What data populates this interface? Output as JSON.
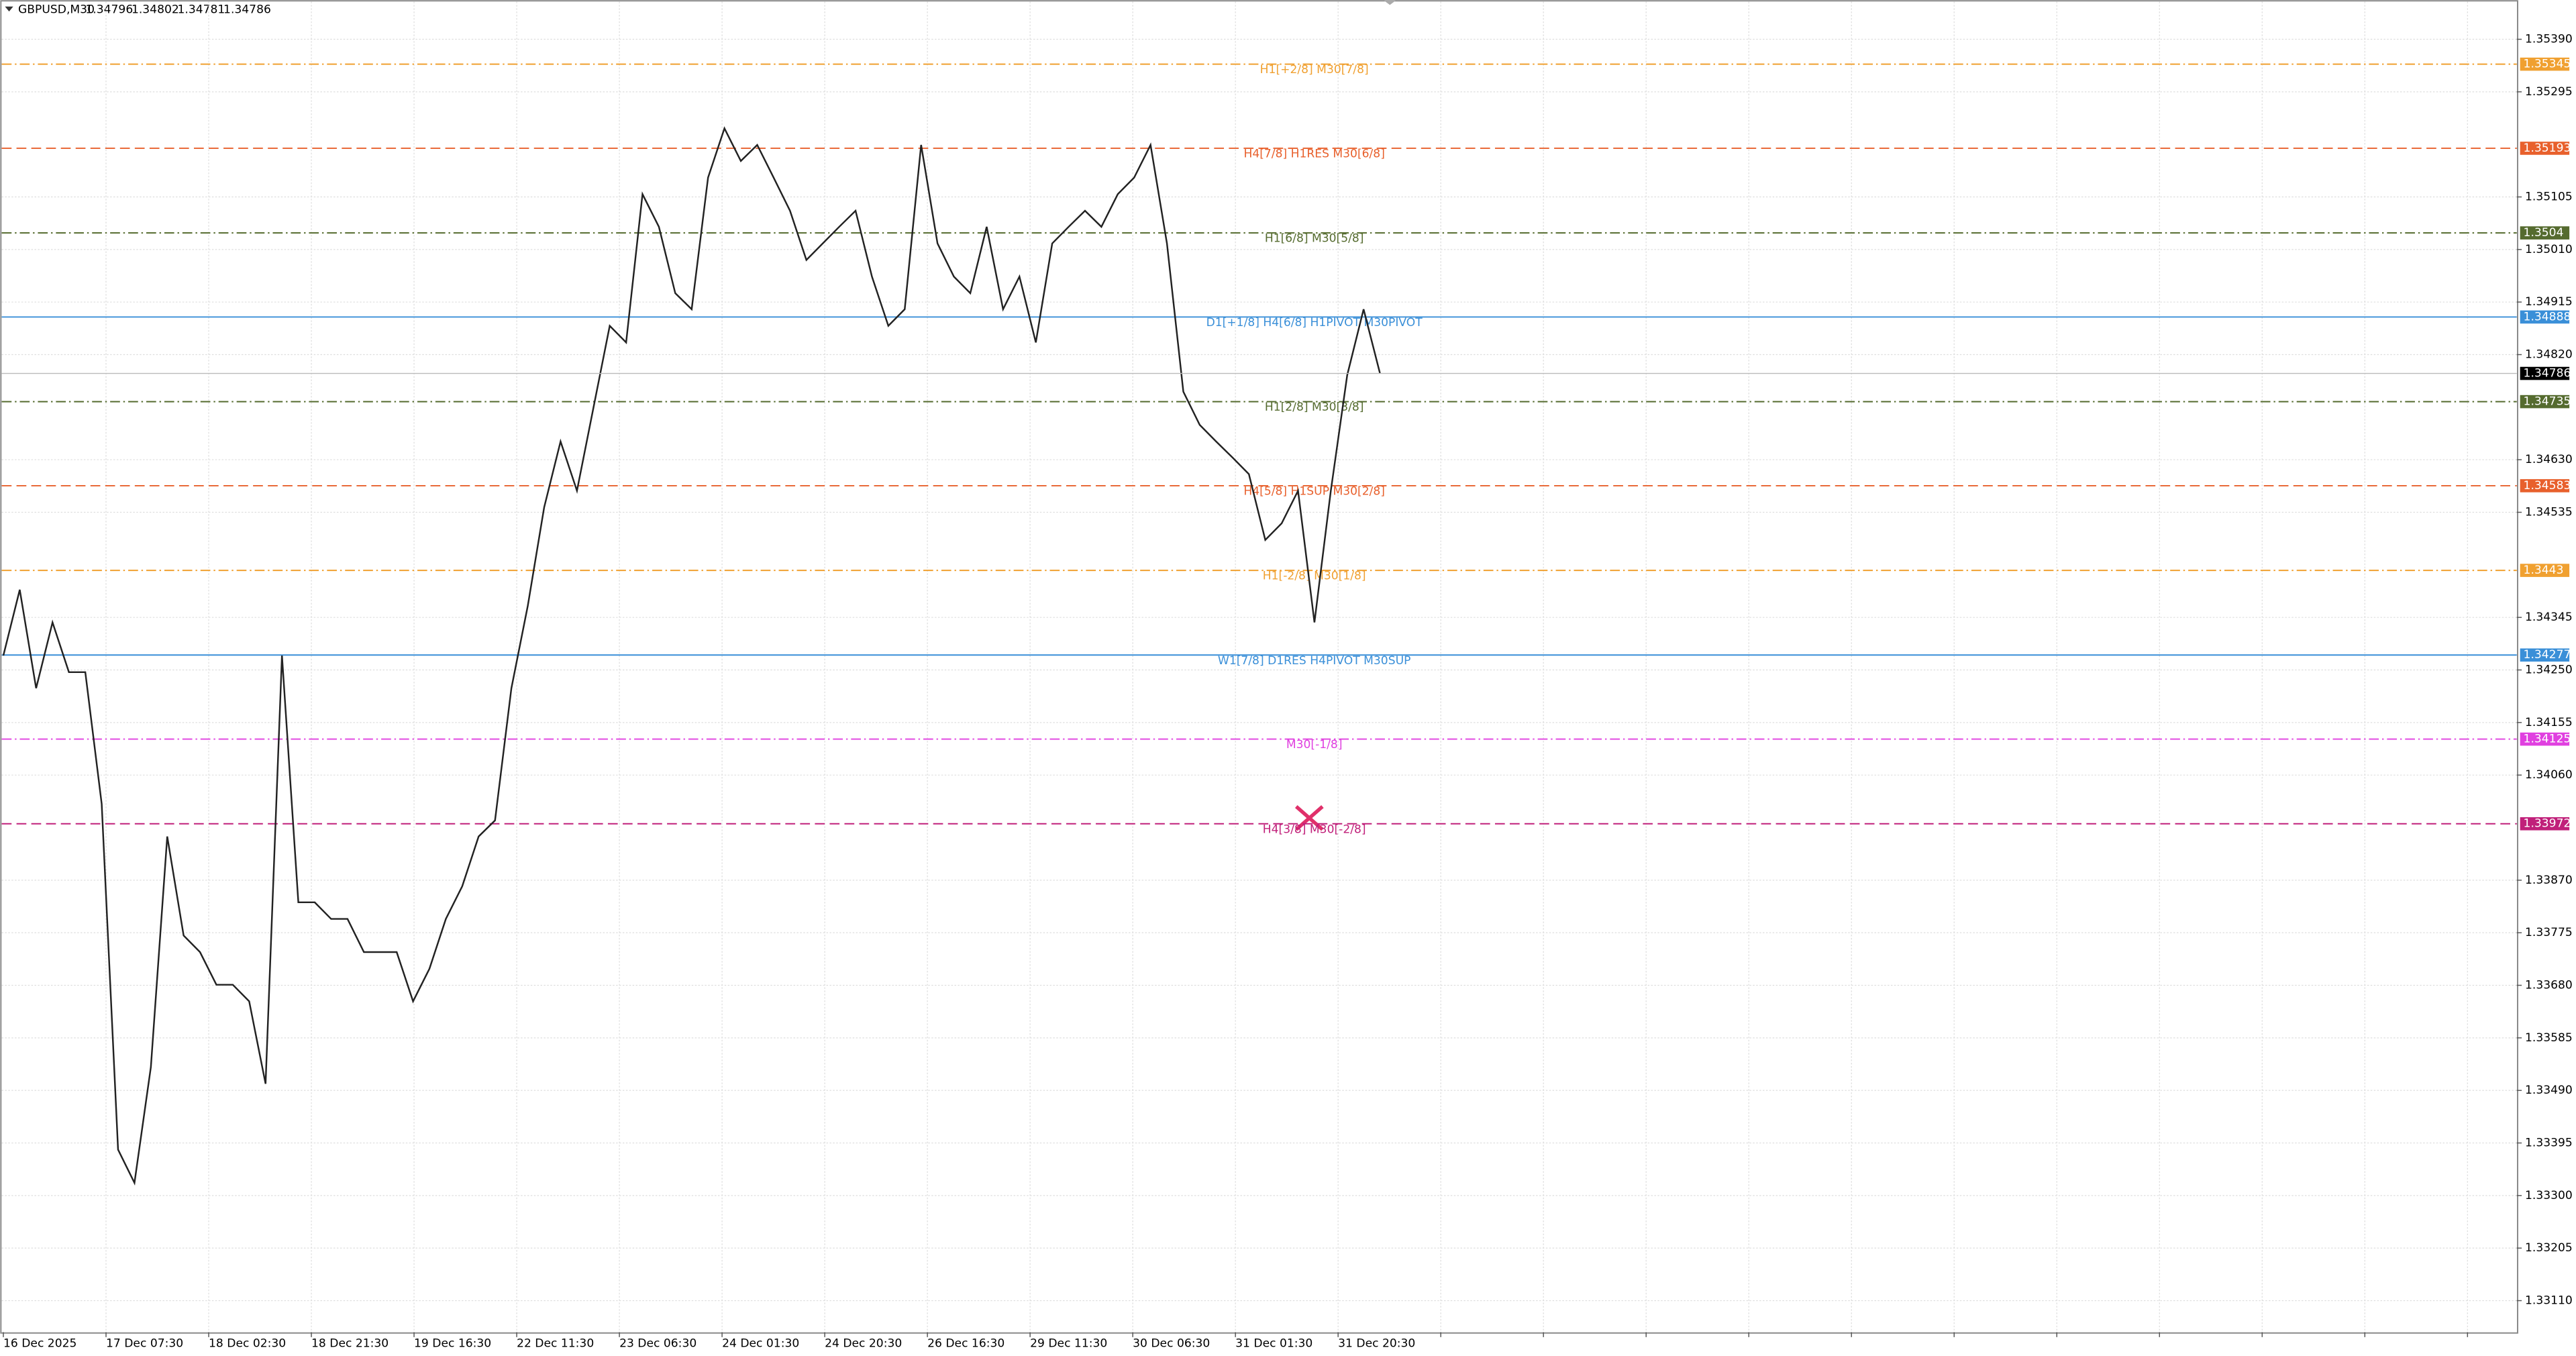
{
  "chart_data": {
    "type": "line",
    "title": "GBPUSD,M30",
    "ohlc": [
      1.34796,
      1.34802,
      1.34781,
      1.34786
    ],
    "color": "#222222",
    "x_labels": [
      "16 Dec 2025",
      "17 Dec 07:30",
      "18 Dec 02:30",
      "18 Dec 21:30",
      "19 Dec 16:30",
      "22 Dec 11:30",
      "23 Dec 06:30",
      "24 Dec 01:30",
      "24 Dec 20:30",
      "26 Dec 16:30",
      "29 Dec 11:30",
      "30 Dec 06:30",
      "31 Dec 01:30",
      "31 Dec 20:30",
      null,
      null,
      null,
      null,
      null,
      null,
      null,
      null,
      null,
      null,
      null
    ],
    "values": [
      1.34276,
      1.34395,
      1.34217,
      1.34336,
      1.34246,
      1.34246,
      1.34008,
      1.33383,
      1.33323,
      1.33532,
      1.33949,
      1.3377,
      1.3374,
      1.33681,
      1.33681,
      1.33651,
      1.33502,
      1.34276,
      1.3383,
      1.3383,
      1.338,
      1.338,
      1.3374,
      1.3374,
      1.3374,
      1.33651,
      1.3371,
      1.338,
      1.33859,
      1.33949,
      1.33978,
      1.34217,
      1.34366,
      1.34544,
      1.34663,
      1.34574,
      1.34723,
      1.34872,
      1.34842,
      1.3511,
      1.35051,
      1.34931,
      1.34902,
      1.3514,
      1.35229,
      1.3517,
      1.35199,
      1.3514,
      1.3508,
      1.34991,
      1.35021,
      1.35051,
      1.3508,
      1.34961,
      1.34872,
      1.34902,
      1.35199,
      1.35021,
      1.34961,
      1.34931,
      1.35051,
      1.34902,
      1.34961,
      1.34842,
      1.35021,
      1.35051,
      1.3508,
      1.35051,
      1.3511,
      1.3514,
      1.35199,
      1.35021,
      1.34753,
      1.34693,
      1.34663,
      1.34634,
      1.34604,
      1.34485,
      1.34515,
      1.34574,
      1.34336,
      1.34574,
      1.34783,
      1.34902,
      1.34786
    ],
    "ylim": [
      1.33053,
      1.35458
    ],
    "yticks": [
      {
        "value": 1.3539,
        "label": "1.35390"
      },
      1.35295,
      1.35105,
      {
        "value": 1.3501,
        "label": "1.35010"
      },
      1.34915,
      {
        "value": 1.3482,
        "label": "1.34820"
      },
      {
        "value": 1.3463,
        "label": "1.34630"
      },
      1.34535,
      1.34345,
      {
        "value": 1.3425,
        "label": "1.34250"
      },
      1.34155,
      {
        "value": 1.3406,
        "label": "1.34060"
      },
      {
        "value": 1.3387,
        "label": "1.33870"
      },
      1.33775,
      {
        "value": 1.3368,
        "label": "1.33680"
      },
      1.33585,
      {
        "value": 1.3349,
        "label": "1.33490"
      },
      1.33395,
      {
        "value": 1.333,
        "label": "1.33300"
      },
      1.33205,
      {
        "value": 1.3311,
        "label": "1.33110"
      }
    ],
    "grid": true,
    "current_price": 1.34786,
    "levels": [
      {
        "label": "H1[+2/8] M30[7/8]",
        "price": 1.35345,
        "color": "#f0a030",
        "dash": "6 2 1 2"
      },
      {
        "label": "H4[7/8] H1RES M30[6/8]",
        "price": 1.35193,
        "color": "#e8602c",
        "dash": "6 3"
      },
      {
        "label": "H1[6/8] M30[5/8]",
        "price": 1.3504,
        "color": "#556b2f",
        "dash": "6 2 1 2"
      },
      {
        "label": "D1[+1/8] H4[6/8] H1PIVOT M30PIVOT",
        "price": 1.34888,
        "color": "#3a8fd8",
        "dash": "none"
      },
      {
        "label": "H1[2/8] M30[3/8]",
        "price": 1.34735,
        "color": "#556b2f",
        "dash": "6 2 1 2"
      },
      {
        "label": "H4[5/8] H1SUP M30[2/8]",
        "price": 1.34583,
        "color": "#e8602c",
        "dash": "6 3"
      },
      {
        "label": "H1[-2/8] M30[1/8]",
        "price": 1.3443,
        "color": "#f0a030",
        "dash": "6 2 1 2"
      },
      {
        "label": "W1[7/8] D1RES H4PIVOT M30SUP",
        "price": 1.34277,
        "color": "#3a8fd8",
        "dash": "none"
      },
      {
        "label": "M30[-1/8]",
        "price": 1.34125,
        "color": "#e040e0",
        "dash": "6 2 1 2"
      },
      {
        "label": "H4[3/8] M30[-2/8]",
        "price": 1.33972,
        "color": "#c0207a",
        "dash": "6 3"
      }
    ]
  }
}
